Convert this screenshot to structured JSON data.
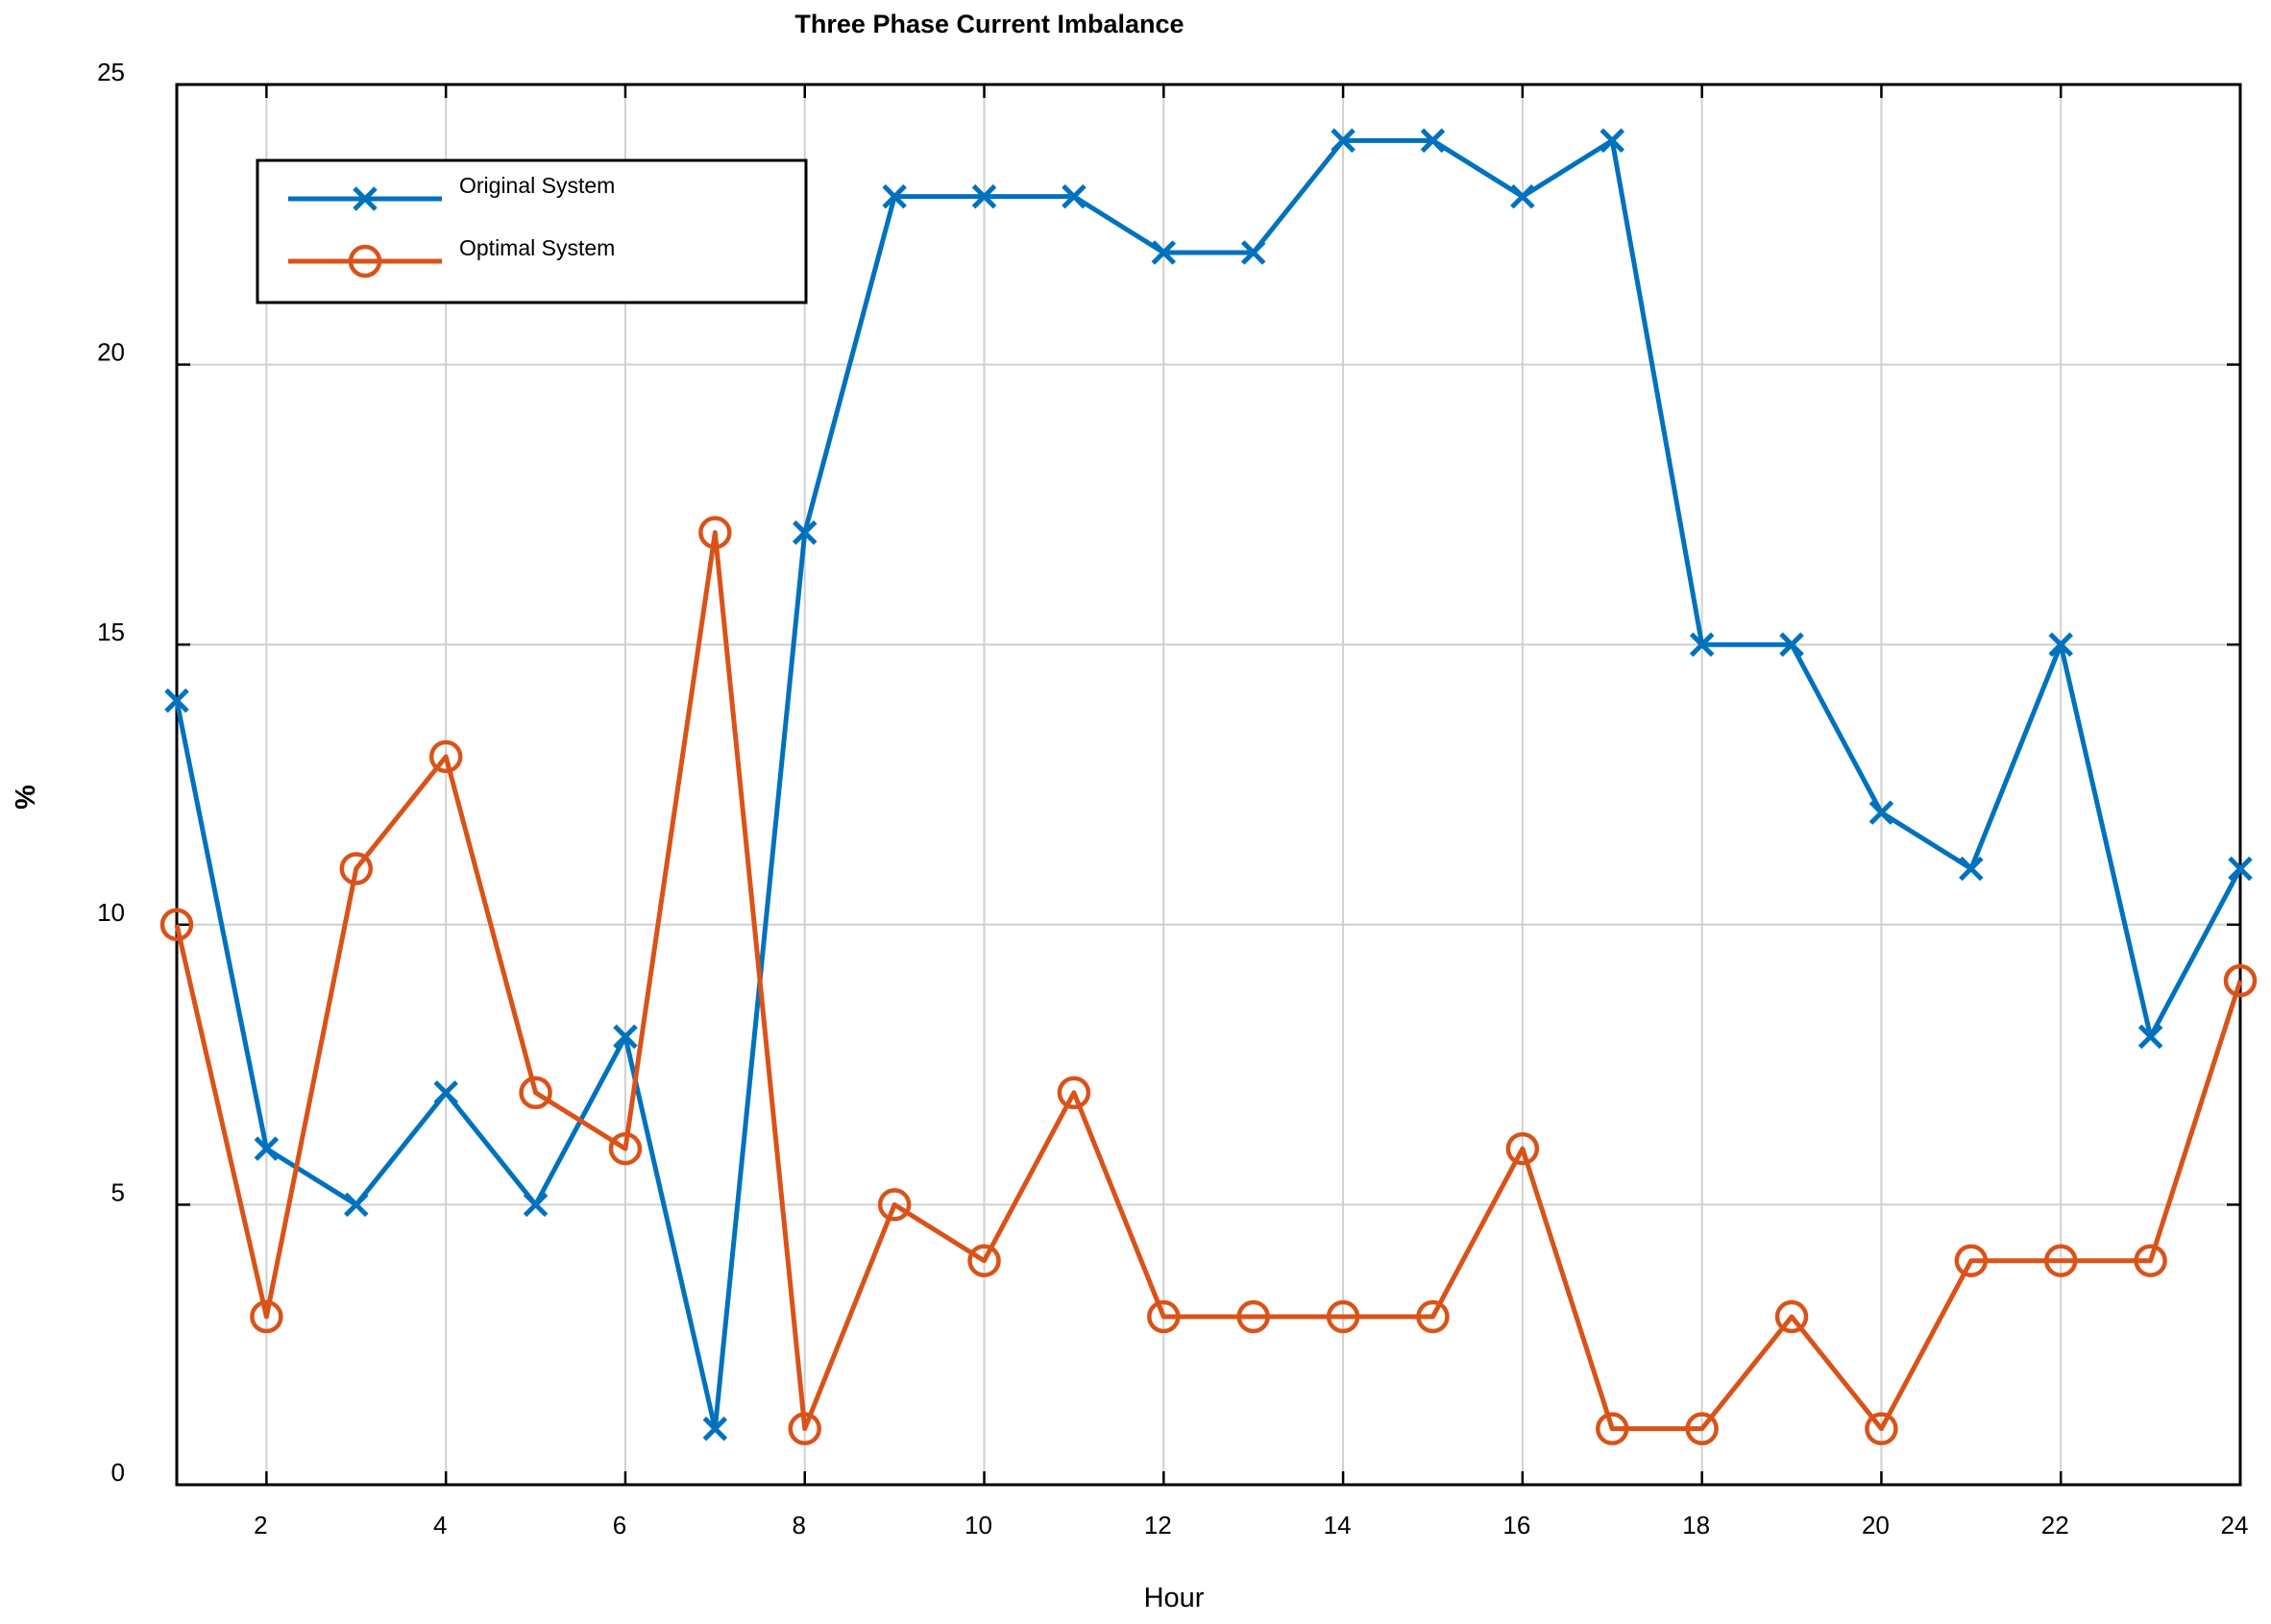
{
  "chart_data": {
    "type": "line",
    "title": "Three Phase Current Imbalance",
    "xlabel": "Hour",
    "ylabel": "%",
    "xlim": [
      1,
      24
    ],
    "ylim": [
      0,
      25
    ],
    "xticks": [
      2,
      4,
      6,
      8,
      10,
      12,
      14,
      16,
      18,
      20,
      22,
      24
    ],
    "yticks": [
      0,
      5,
      10,
      15,
      20,
      25
    ],
    "grid": true,
    "legend_position": "top-left",
    "x": [
      1,
      2,
      3,
      4,
      5,
      6,
      7,
      8,
      9,
      10,
      11,
      12,
      13,
      14,
      15,
      16,
      17,
      18,
      19,
      20,
      21,
      22,
      23,
      24
    ],
    "series": [
      {
        "name": "Original System",
        "marker": "x",
        "color": "#0072bd",
        "values": [
          14,
          6,
          5,
          7,
          5,
          8,
          1,
          17,
          23,
          23,
          23,
          22,
          22,
          24,
          24,
          23,
          24,
          15,
          15,
          12,
          11,
          15,
          8,
          11
        ]
      },
      {
        "name": "Optimal System",
        "marker": "o",
        "color": "#d95319",
        "values": [
          10,
          3,
          11,
          13,
          7,
          6,
          17,
          1,
          5,
          4,
          7,
          3,
          3,
          3,
          3,
          6,
          1,
          1,
          3,
          1,
          4,
          4,
          4,
          9
        ]
      }
    ]
  }
}
